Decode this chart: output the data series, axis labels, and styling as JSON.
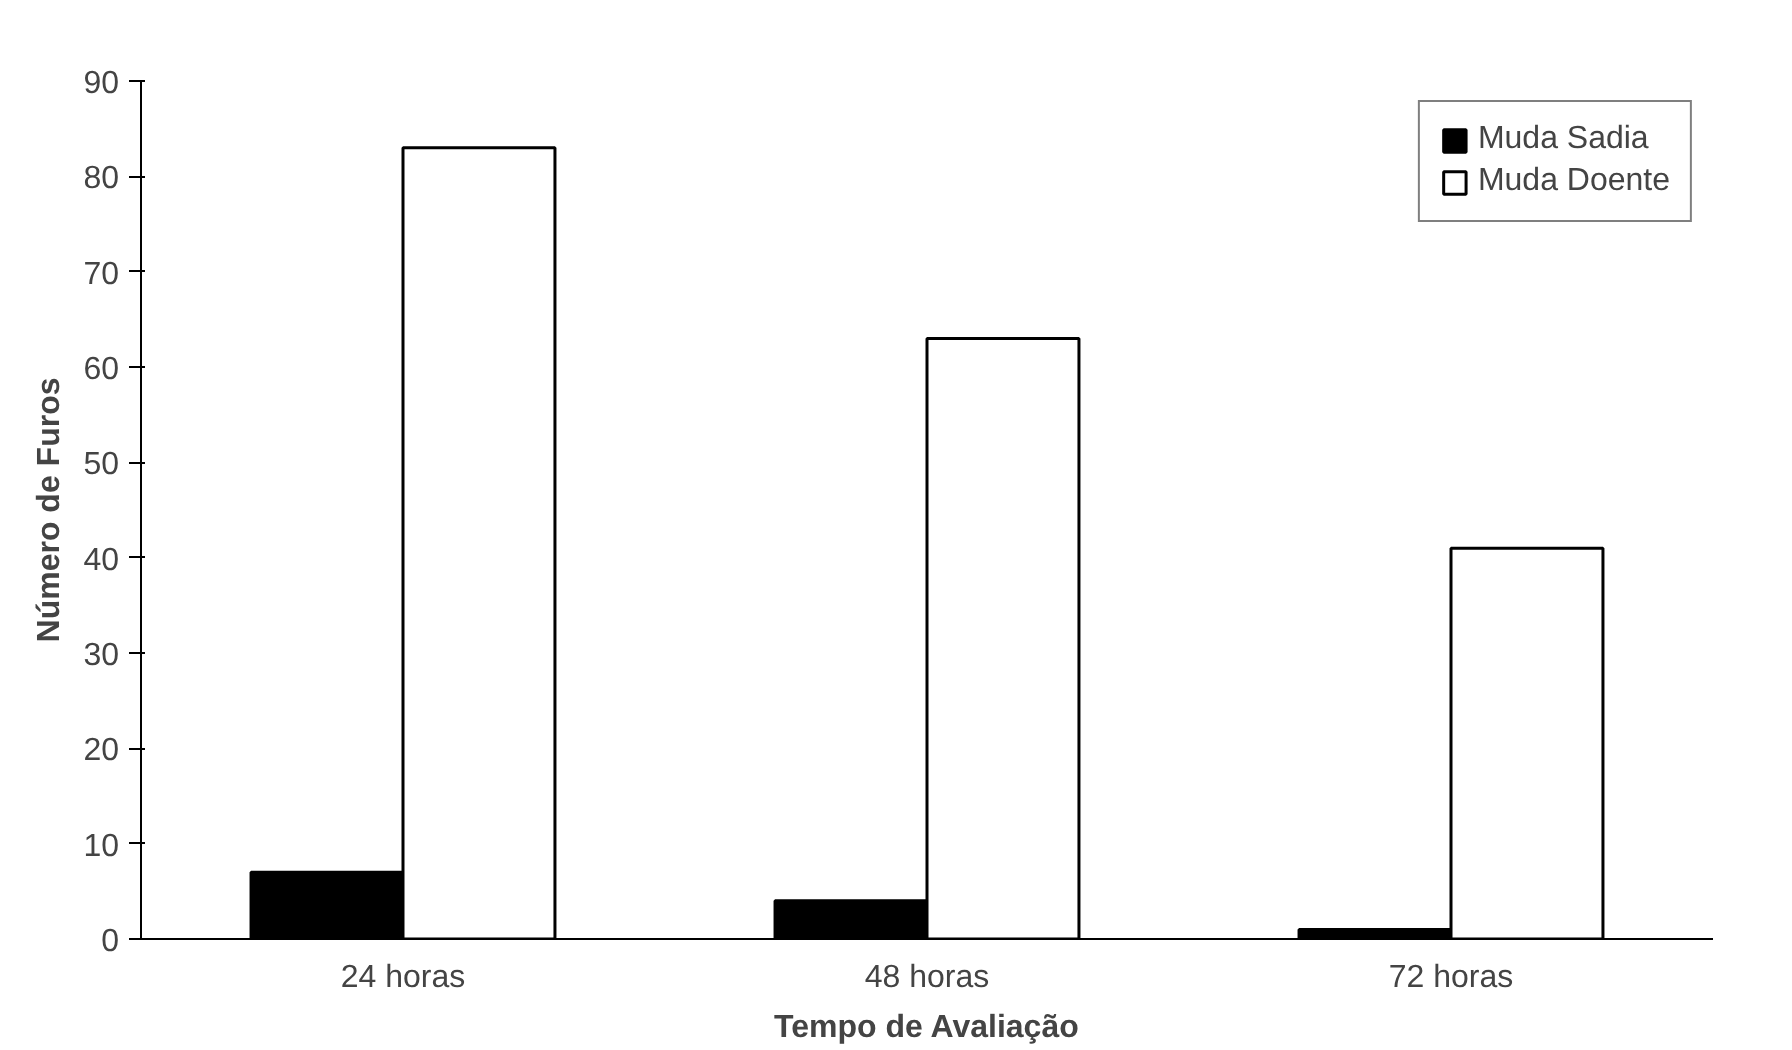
{
  "chart_data": {
    "type": "bar",
    "xlabel": "Tempo de Avaliação",
    "ylabel": "Número de Furos",
    "categories": [
      "24 horas",
      "48 horas",
      "72 horas"
    ],
    "series": [
      {
        "name": "Muda Sadia",
        "color": "#000000",
        "values": [
          7,
          4,
          1
        ]
      },
      {
        "name": "Muda Doente",
        "color": "#ffffff",
        "values": [
          83,
          63,
          41
        ]
      }
    ],
    "ylim": [
      0,
      90
    ],
    "yticks": [
      0,
      10,
      20,
      30,
      40,
      50,
      60,
      70,
      80,
      90
    ],
    "grid": false,
    "legend": "top right"
  }
}
